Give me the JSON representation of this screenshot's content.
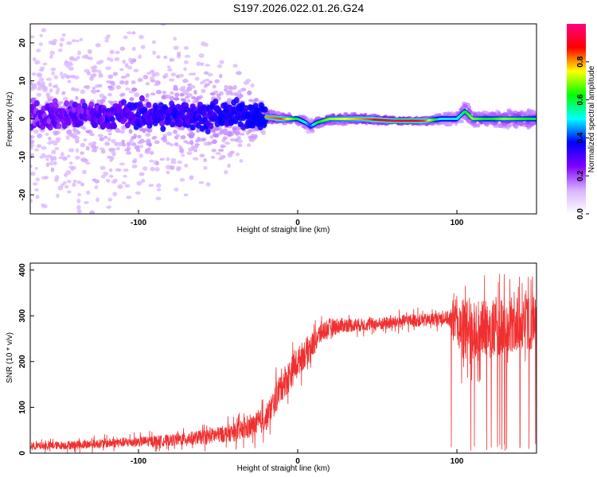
{
  "title": "S197.2026.022.01.26.G24",
  "chart_data": [
    {
      "type": "heatmap",
      "xlabel": "Height of straight line (km)",
      "ylabel": "Frequency (Hz)",
      "xlim": [
        -168,
        150
      ],
      "ylim": [
        -25,
        25
      ],
      "xticks": [
        -100,
        0,
        100
      ],
      "yticks": [
        -20,
        -10,
        0,
        10,
        20
      ],
      "grid": false,
      "colorbar": {
        "label": "Normalized spectral amplitude",
        "ticks": [
          "0.0",
          "0.2",
          "0.4",
          "0.6",
          "0.8"
        ],
        "tick_values": [
          0.0,
          0.2,
          0.4,
          0.6,
          0.8
        ],
        "range": [
          0,
          1
        ],
        "colors": [
          "#ffffff",
          "#d9b3ff",
          "#8000ff",
          "#0000ff",
          "#00ffff",
          "#00ff00",
          "#ffff00",
          "#ff0000",
          "#ff0080"
        ]
      },
      "ridge": {
        "description_values": "frequency centre near 0 Hz along height",
        "x": [
          -168,
          -140,
          -100,
          -60,
          -30,
          -20,
          -10,
          0,
          5,
          8,
          12,
          20,
          40,
          60,
          80,
          90,
          100,
          105,
          110,
          120,
          130,
          150
        ],
        "freq": [
          1,
          1,
          1,
          1,
          1,
          0.5,
          0,
          0,
          -1,
          -2,
          -1,
          0,
          0,
          -0.5,
          -0.5,
          0,
          0,
          2,
          0,
          0,
          0,
          0
        ],
        "spread_hz": [
          20,
          22,
          20,
          14,
          8,
          2,
          1.5,
          1.5,
          2,
          2,
          1.5,
          1.5,
          1.5,
          1,
          1,
          1.5,
          2,
          3,
          2,
          2,
          2.5,
          2.5
        ],
        "amplitude": [
          0.15,
          0.2,
          0.3,
          0.35,
          0.45,
          0.8,
          0.85,
          0.6,
          0.5,
          0.4,
          0.6,
          0.7,
          0.8,
          0.95,
          0.85,
          0.5,
          0.5,
          0.6,
          0.7,
          0.6,
          0.7,
          0.6
        ]
      }
    },
    {
      "type": "line",
      "xlabel": "Height of straight line (km)",
      "ylabel": "SNR (10 * v/v)",
      "xlim": [
        -168,
        150
      ],
      "ylim": [
        0,
        415
      ],
      "xticks": [
        -100,
        0,
        100
      ],
      "yticks": [
        0,
        100,
        200,
        300,
        400
      ],
      "grid": false,
      "color": "#f03030",
      "envelope": {
        "x": [
          -168,
          -140,
          -100,
          -80,
          -60,
          -50,
          -40,
          -30,
          -20,
          -15,
          -10,
          -5,
          0,
          5,
          10,
          15,
          20,
          30,
          40,
          50,
          60,
          70,
          80,
          90,
          95,
          100,
          110,
          120,
          130,
          140,
          150
        ],
        "mean": [
          15,
          18,
          25,
          28,
          35,
          40,
          45,
          55,
          75,
          110,
          150,
          170,
          200,
          220,
          240,
          265,
          275,
          280,
          280,
          282,
          285,
          290,
          290,
          295,
          295,
          280,
          260,
          270,
          275,
          280,
          290
        ],
        "noise": [
          10,
          12,
          14,
          16,
          20,
          22,
          25,
          30,
          35,
          40,
          45,
          45,
          40,
          40,
          35,
          30,
          25,
          20,
          18,
          18,
          18,
          18,
          18,
          18,
          20,
          80,
          90,
          80,
          80,
          80,
          70
        ]
      }
    }
  ]
}
